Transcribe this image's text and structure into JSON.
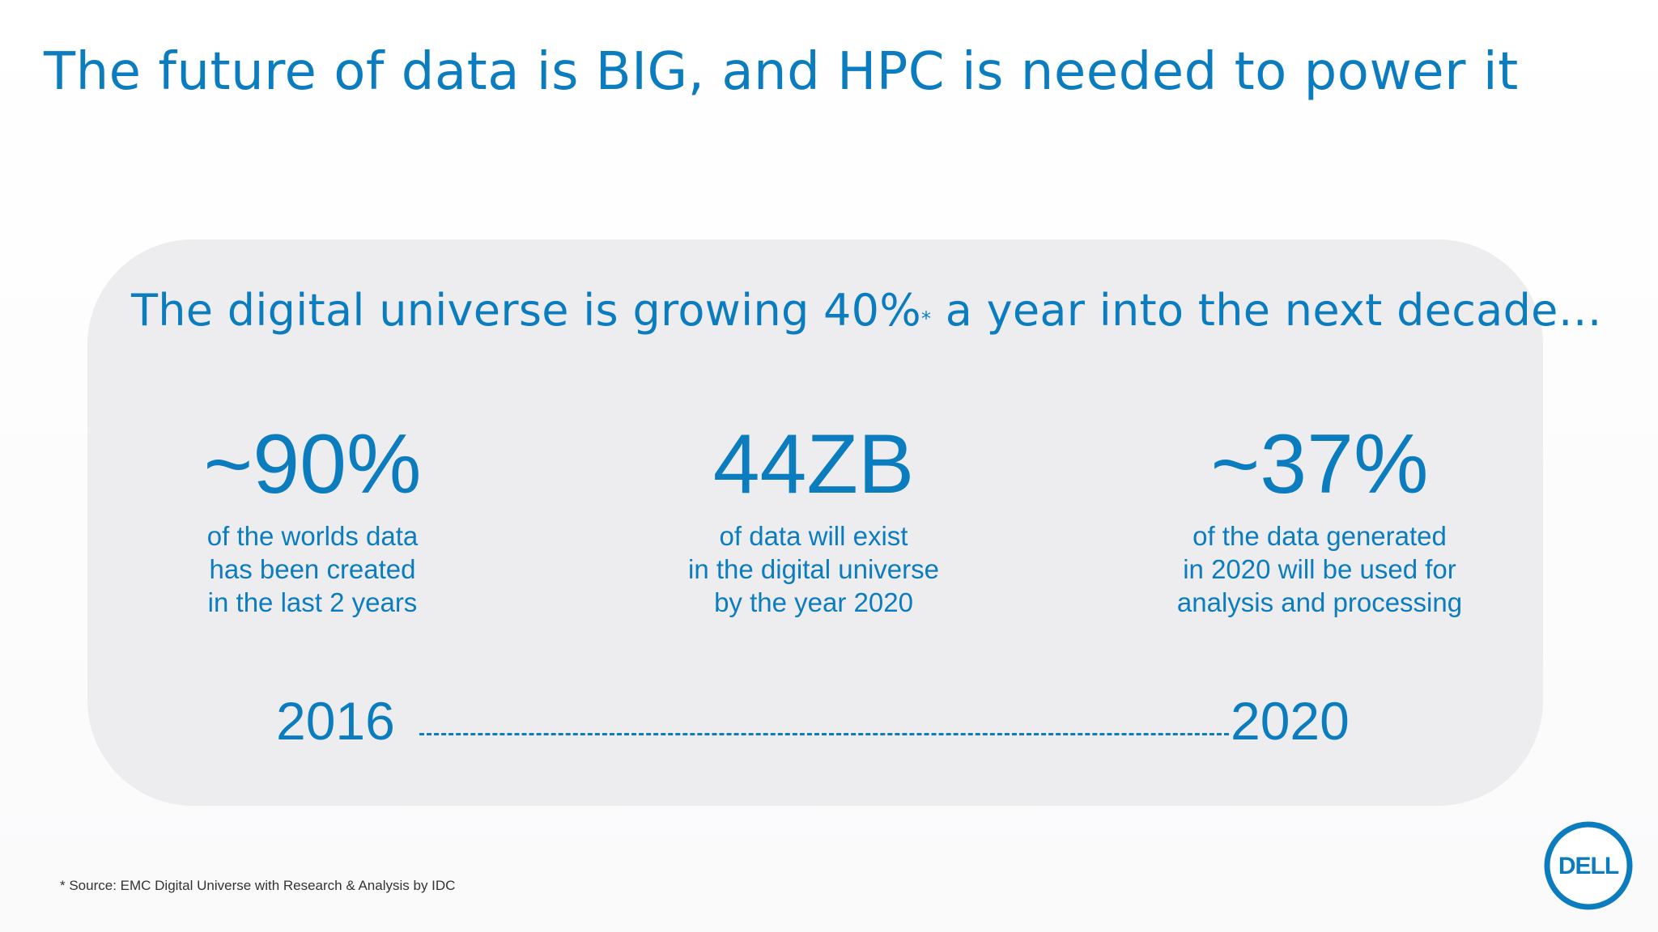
{
  "slide": {
    "title": "The future of data is BIG, and HPC is needed to power it"
  },
  "panel": {
    "subtitle_pre": "The digital universe is growing 40%",
    "subtitle_star": "*",
    "subtitle_post": " a year into the next decade…"
  },
  "stats": [
    {
      "value": "~90%",
      "desc": [
        "of the worlds data",
        "has been created",
        "in the last 2 years"
      ]
    },
    {
      "value": "44ZB",
      "desc": [
        "of data will exist",
        "in the digital universe",
        "by the year 2020"
      ]
    },
    {
      "value": "~37%",
      "desc": [
        "of the data generated",
        "in 2020 will be used for",
        "analysis and processing"
      ]
    }
  ],
  "timeline": {
    "start": "2016",
    "end": "2020"
  },
  "footnote": "* Source: EMC Digital Universe with Research & Analysis by IDC",
  "logo": {
    "text": "DELL",
    "icon": "dell-logo-icon"
  },
  "colors": {
    "accent": "#0b7dbf",
    "panel": "#ededef"
  }
}
